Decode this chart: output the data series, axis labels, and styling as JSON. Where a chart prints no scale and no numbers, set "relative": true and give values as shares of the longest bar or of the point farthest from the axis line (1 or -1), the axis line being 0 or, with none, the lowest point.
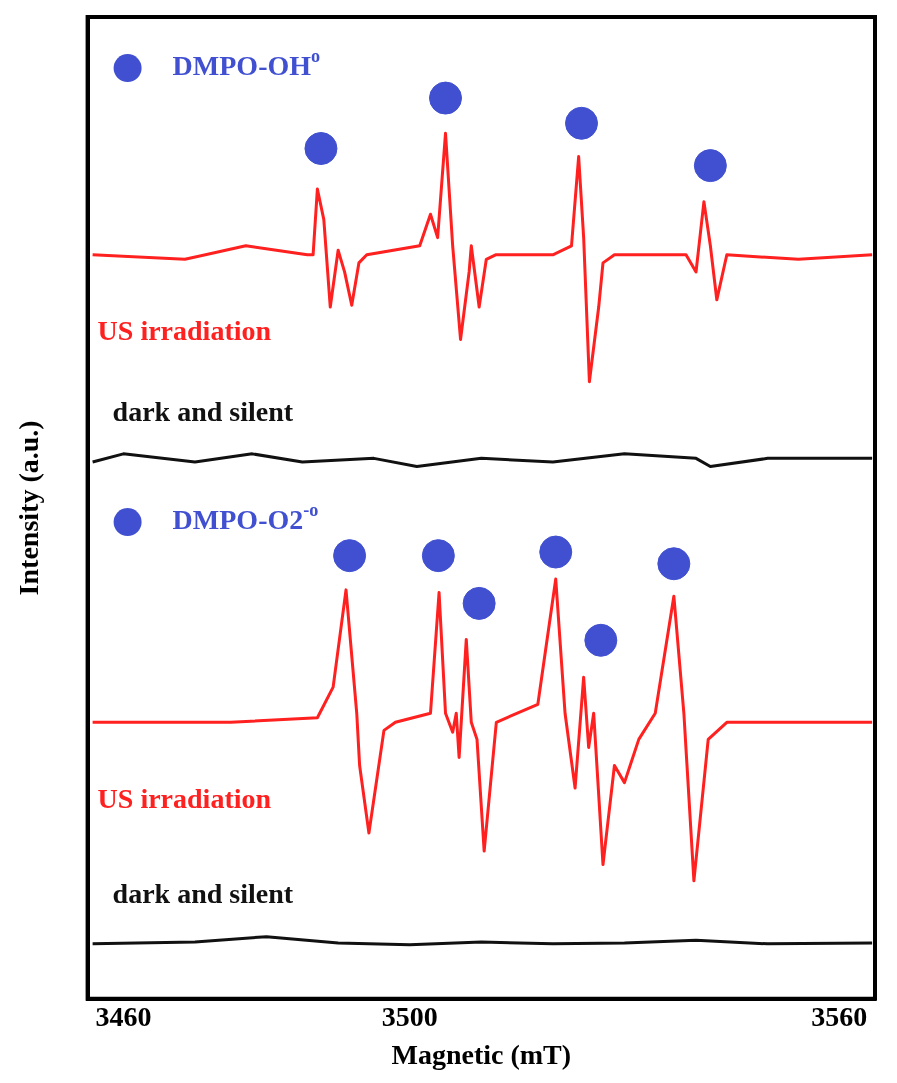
{
  "chart_data": {
    "type": "line",
    "xlabel": "Magnetic (mT)",
    "ylabel": "Intensity (a.u.)",
    "relative": true,
    "xlim": [
      3455,
      3565
    ],
    "xticks": [
      3460,
      3500,
      3560
    ],
    "grid": false,
    "legend": "top left",
    "series": [
      {
        "name": "US irradiation",
        "color": "#ff2020",
        "x": [
          3455.7,
          3468.6,
          3477.1,
          3485.7,
          3486.5,
          3487.1,
          3488,
          3488.9,
          3490,
          3490.9,
          3491.9,
          3492.9,
          3494,
          3501.4,
          3502.9,
          3503.9,
          3505,
          3506,
          3507.1,
          3508.3,
          3508.6,
          3509.7,
          3510.7,
          3512,
          3520,
          3522.6,
          3523.6,
          3524.3,
          3525.1,
          3526.4,
          3527,
          3528.6,
          3538.6,
          3540,
          3541.1,
          3542,
          3542.9,
          3544.3,
          3554.3,
          3564.6
        ],
        "values": [
          0.826,
          0.821,
          0.836,
          0.826,
          0.826,
          0.899,
          0.865,
          0.768,
          0.831,
          0.807,
          0.77,
          0.817,
          0.826,
          0.836,
          0.871,
          0.845,
          0.961,
          0.836,
          0.732,
          0.807,
          0.836,
          0.768,
          0.821,
          0.826,
          0.826,
          0.836,
          0.935,
          0.845,
          0.685,
          0.768,
          0.817,
          0.826,
          0.826,
          0.807,
          0.885,
          0.836,
          0.776,
          0.826,
          0.821,
          0.826
        ]
      },
      {
        "name": "dark and silent",
        "color": "#111111",
        "x": [
          3455.7,
          3460,
          3470,
          3478,
          3485,
          3495,
          3501,
          3510,
          3520,
          3530,
          3540,
          3542,
          3550,
          3564.6
        ],
        "values": [
          0.596,
          0.605,
          0.596,
          0.605,
          0.596,
          0.6,
          0.591,
          0.6,
          0.596,
          0.605,
          0.6,
          0.591,
          0.6,
          0.6
        ]
      },
      {
        "name": "US irradiation",
        "color": "#ff2020",
        "x": [
          3455.7,
          3475,
          3487.1,
          3489.3,
          3491.1,
          3492.6,
          3493,
          3494.3,
          3496.4,
          3498,
          3502.9,
          3504.1,
          3505,
          3506,
          3506.5,
          3506.9,
          3507.9,
          3508.6,
          3509.4,
          3510.4,
          3512.1,
          3517.9,
          3520.4,
          3521.7,
          3523.1,
          3524.3,
          3525,
          3525.7,
          3527,
          3528.6,
          3530,
          3532,
          3534.3,
          3536.9,
          3538.3,
          3539.7,
          3541.7,
          3544.3,
          3564.6
        ],
        "values": [
          0.307,
          0.307,
          0.312,
          0.346,
          0.454,
          0.317,
          0.259,
          0.184,
          0.298,
          0.307,
          0.317,
          0.451,
          0.317,
          0.296,
          0.317,
          0.268,
          0.399,
          0.307,
          0.288,
          0.164,
          0.307,
          0.327,
          0.466,
          0.317,
          0.234,
          0.357,
          0.279,
          0.317,
          0.149,
          0.259,
          0.24,
          0.288,
          0.317,
          0.447,
          0.317,
          0.131,
          0.288,
          0.307,
          0.307
        ]
      },
      {
        "name": "dark and silent",
        "color": "#111111",
        "x": [
          3455.7,
          3470,
          3480,
          3490,
          3500,
          3510,
          3520,
          3530,
          3540,
          3550,
          3564.6
        ],
        "values": [
          0.061,
          0.063,
          0.069,
          0.062,
          0.06,
          0.063,
          0.061,
          0.062,
          0.065,
          0.061,
          0.062
        ]
      },
      {
        "name": "DMPO-OH$^{o}$",
        "type": "scatter",
        "marker": "circle",
        "color": "#4050d0",
        "x": [
          3487.6,
          3505,
          3524,
          3542
        ],
        "values": [
          0.944,
          1,
          0.972,
          0.925
        ]
      },
      {
        "name": "DMPO-O2$^{-o}$",
        "type": "scatter",
        "marker": "circle",
        "color": "#4050d0",
        "x": [
          3491.6,
          3504,
          3509.7,
          3520.4,
          3526.7,
          3536.9
        ],
        "values": [
          0.492,
          0.492,
          0.439,
          0.496,
          0.398,
          0.483
        ]
      }
    ]
  }
}
